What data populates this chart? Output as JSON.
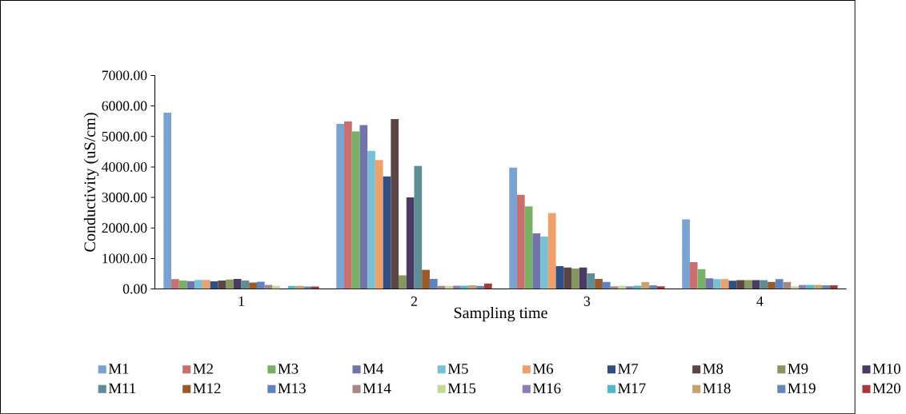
{
  "chart_data": {
    "type": "bar",
    "xlabel": "Sampling time",
    "ylabel": "Conductivity (uS/cm)",
    "categories": [
      "1",
      "2",
      "3",
      "4"
    ],
    "ylim": [
      0,
      7000
    ],
    "yticks": [
      {
        "value": 0,
        "label": "0.00"
      },
      {
        "value": 1000,
        "label": "1000.00"
      },
      {
        "value": 2000,
        "label": "2000.00"
      },
      {
        "value": 3000,
        "label": "3000.00"
      },
      {
        "value": 4000,
        "label": "4000.00"
      },
      {
        "value": 5000,
        "label": "5000.00"
      },
      {
        "value": 6000,
        "label": "6000.00"
      },
      {
        "value": 7000,
        "label": "7000.00"
      }
    ],
    "legend": "bottom",
    "series": [
      {
        "name": "M1",
        "color": "#7ba3d1",
        "values": [
          5780,
          5410,
          3980,
          2280
        ]
      },
      {
        "name": "M2",
        "color": "#c9706f",
        "values": [
          320,
          5500,
          3090,
          880
        ]
      },
      {
        "name": "M3",
        "color": "#77b163",
        "values": [
          280,
          5170,
          2710,
          650
        ]
      },
      {
        "name": "M4",
        "color": "#7074a9",
        "values": [
          260,
          5370,
          1820,
          350
        ]
      },
      {
        "name": "M5",
        "color": "#79c0d4",
        "values": [
          300,
          4530,
          1720,
          320
        ]
      },
      {
        "name": "M6",
        "color": "#f0a06a",
        "values": [
          300,
          4230,
          2490,
          320
        ]
      },
      {
        "name": "M7",
        "color": "#2f4f84",
        "values": [
          250,
          3690,
          750,
          270
        ]
      },
      {
        "name": "M8",
        "color": "#5b4646",
        "values": [
          280,
          5570,
          700,
          290
        ]
      },
      {
        "name": "M9",
        "color": "#87985f",
        "values": [
          310,
          450,
          670,
          290
        ]
      },
      {
        "name": "M10",
        "color": "#4b3a63",
        "values": [
          330,
          3000,
          700,
          290
        ]
      },
      {
        "name": "M11",
        "color": "#5d8d95",
        "values": [
          280,
          4040,
          510,
          290
        ]
      },
      {
        "name": "M12",
        "color": "#9b5a2a",
        "values": [
          210,
          630,
          330,
          230
        ]
      },
      {
        "name": "M13",
        "color": "#5c84c3",
        "values": [
          240,
          330,
          230,
          320
        ]
      },
      {
        "name": "M14",
        "color": "#a88782",
        "values": [
          130,
          100,
          90,
          230
        ]
      },
      {
        "name": "M15",
        "color": "#c3d99b",
        "values": [
          100,
          100,
          110,
          90
        ]
      },
      {
        "name": "M16",
        "color": "#8f7bb5",
        "values": [
          0,
          110,
          90,
          130
        ]
      },
      {
        "name": "M17",
        "color": "#4fb8c9",
        "values": [
          100,
          110,
          110,
          130
        ]
      },
      {
        "name": "M18",
        "color": "#c7a26e",
        "values": [
          100,
          120,
          230,
          130
        ]
      },
      {
        "name": "M19",
        "color": "#6688b7",
        "values": [
          80,
          100,
          120,
          120
        ]
      },
      {
        "name": "M20",
        "color": "#a63a3a",
        "values": [
          80,
          180,
          90,
          120
        ]
      }
    ]
  }
}
